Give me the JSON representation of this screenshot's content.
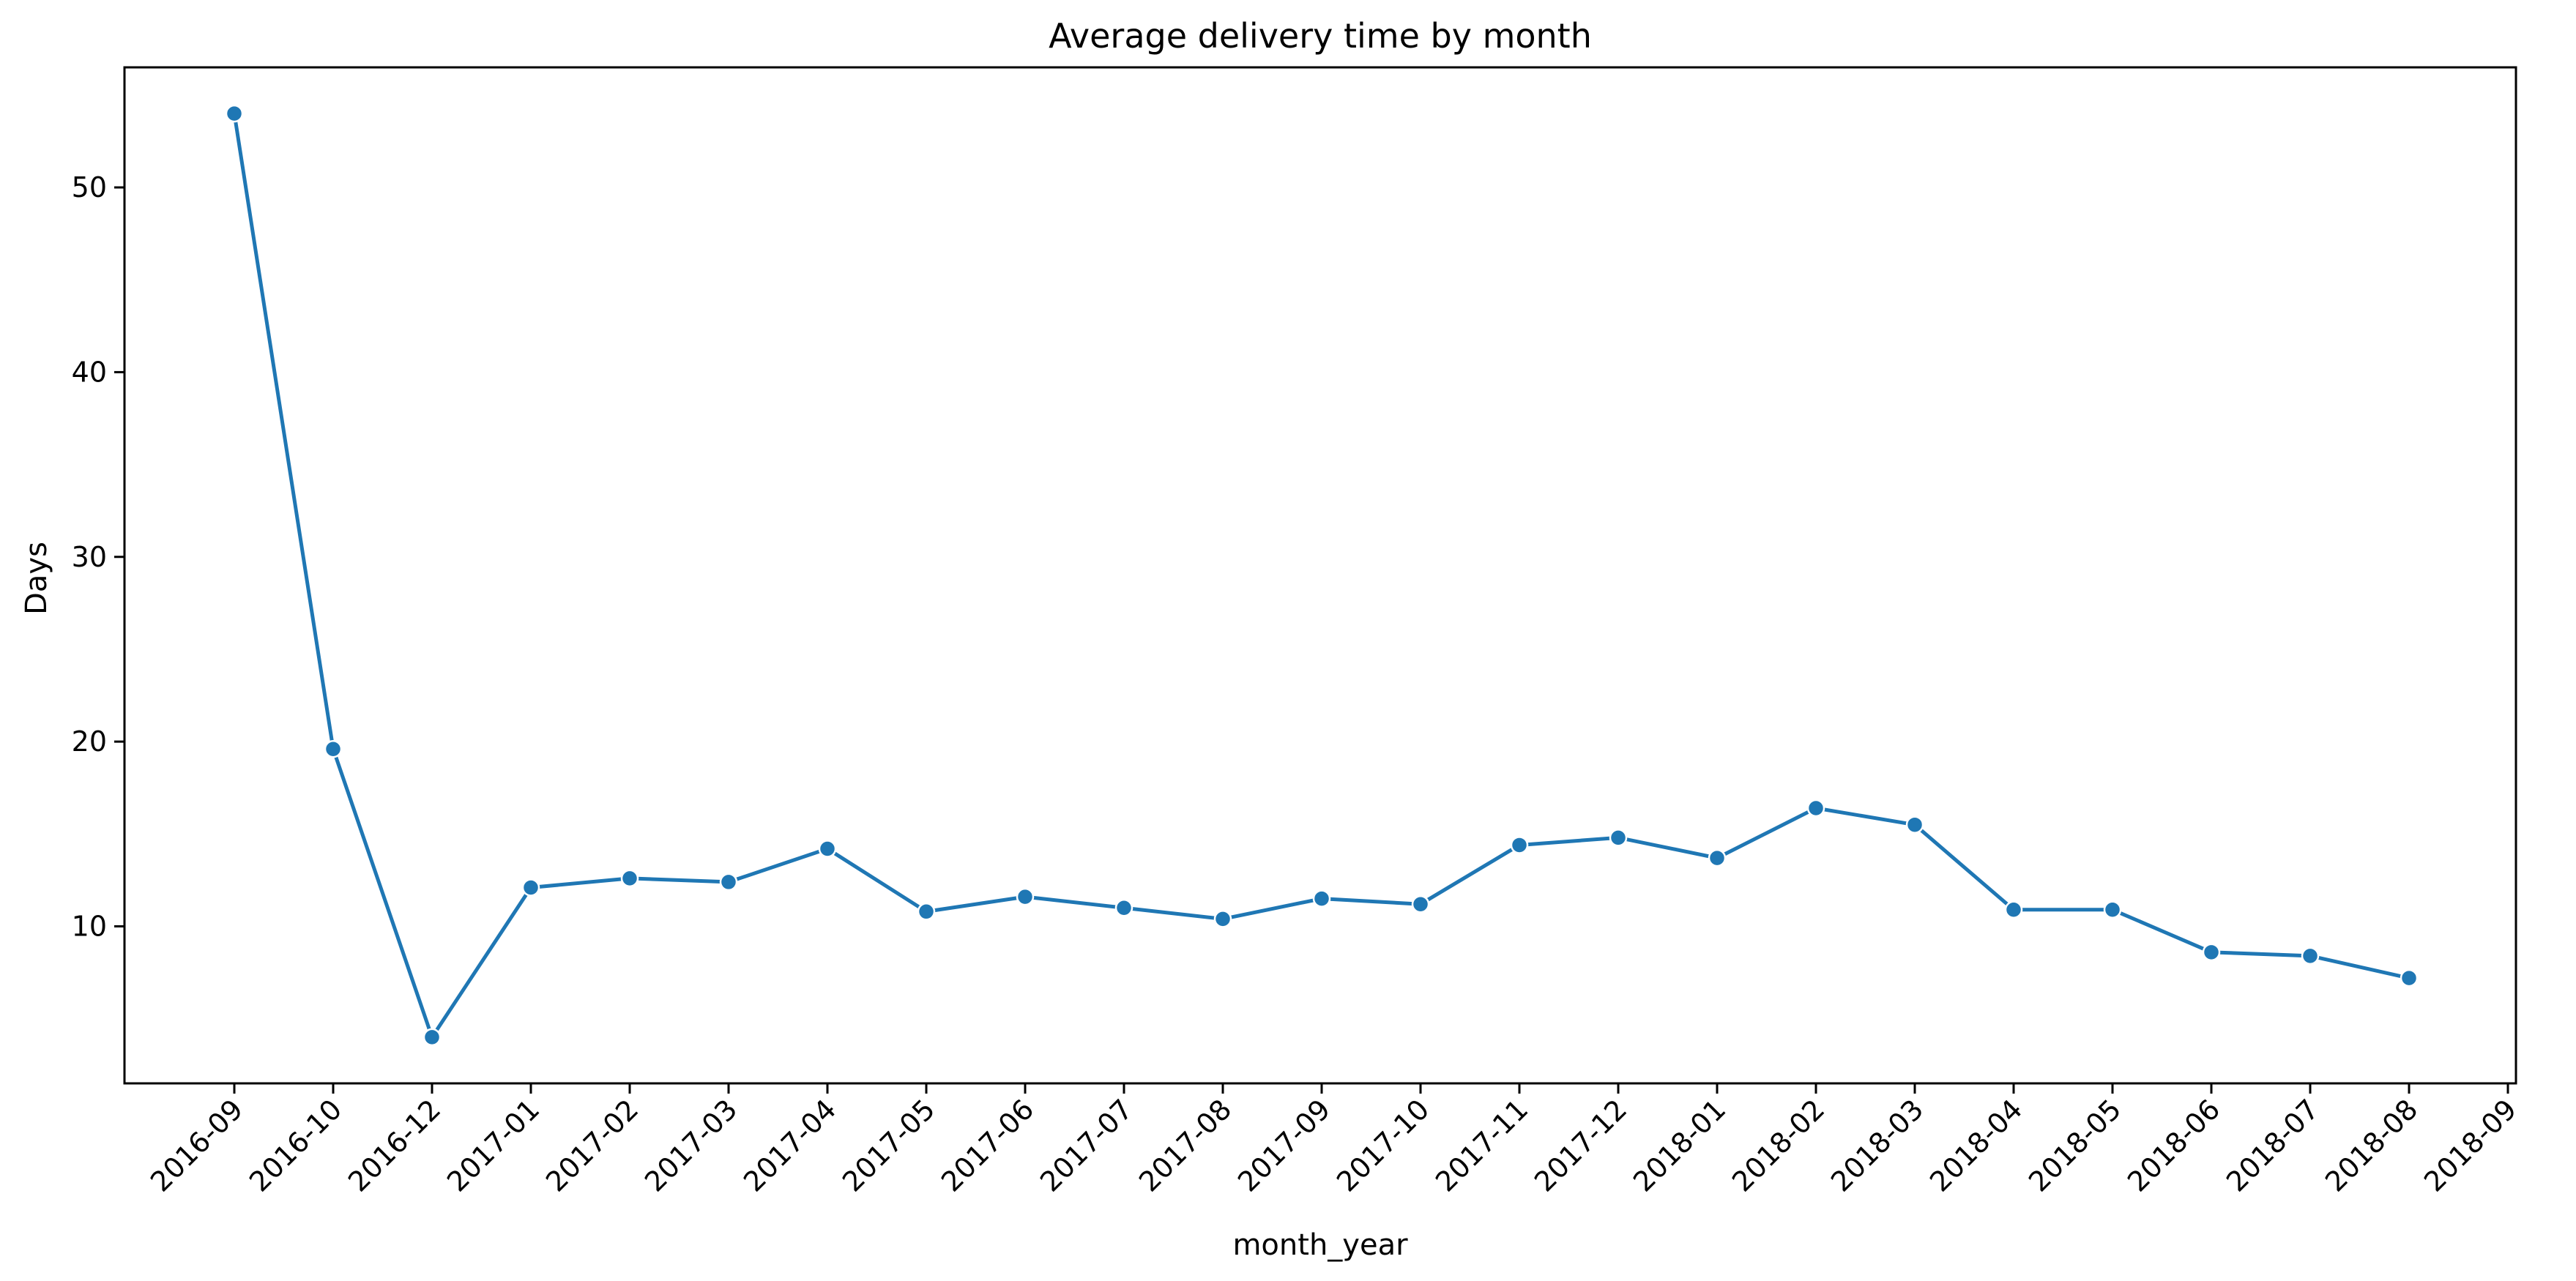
{
  "chart_data": {
    "type": "line",
    "title": "Average delivery time by month",
    "xlabel": "month_year",
    "ylabel": "Days",
    "x_tick_labels": [
      "2016-09",
      "2016-10",
      "2016-12",
      "2017-01",
      "2017-02",
      "2017-03",
      "2017-04",
      "2017-05",
      "2017-06",
      "2017-07",
      "2017-08",
      "2017-09",
      "2017-10",
      "2017-11",
      "2017-12",
      "2018-01",
      "2018-02",
      "2018-03",
      "2018-04",
      "2018-05",
      "2018-06",
      "2018-07",
      "2018-08",
      "2018-09"
    ],
    "y_ticks": [
      10,
      20,
      30,
      40,
      50
    ],
    "ylim": [
      1.5,
      56.5
    ],
    "grid": false,
    "colors": {
      "series": "#1f77b4",
      "axis": "#000000"
    },
    "series": [
      {
        "x": [
          "2016-09",
          "2016-10",
          "2016-12",
          "2017-01",
          "2017-02",
          "2017-03",
          "2017-04",
          "2017-05",
          "2017-06",
          "2017-07",
          "2017-08",
          "2017-09",
          "2017-10",
          "2017-11",
          "2017-12",
          "2018-01",
          "2018-02",
          "2018-03",
          "2018-04",
          "2018-05",
          "2018-06",
          "2018-07",
          "2018-08"
        ],
        "values": [
          54.0,
          19.6,
          4.0,
          12.1,
          12.6,
          12.4,
          14.2,
          10.8,
          11.6,
          11.0,
          10.4,
          11.5,
          11.2,
          14.4,
          14.8,
          13.7,
          16.4,
          15.5,
          10.9,
          10.9,
          8.6,
          8.4,
          7.2
        ]
      }
    ]
  }
}
